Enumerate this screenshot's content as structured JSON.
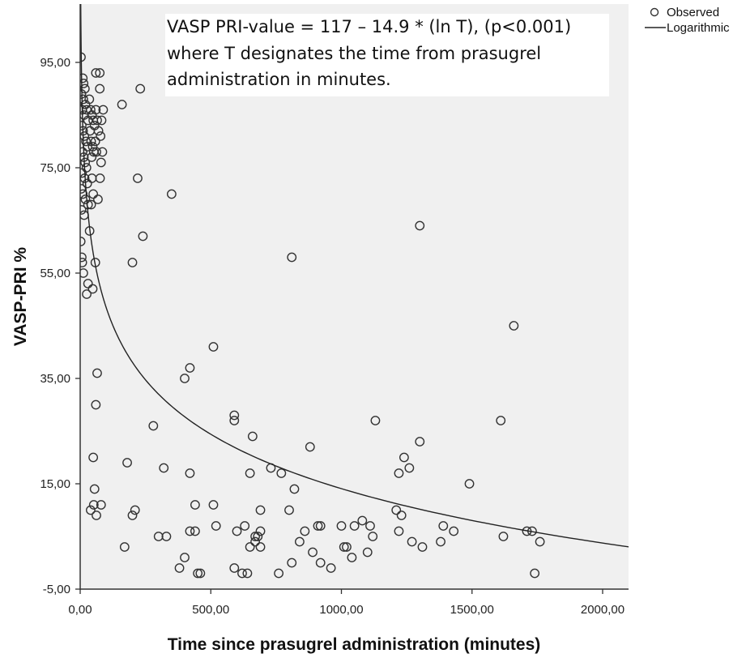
{
  "chart_data": {
    "type": "scatter",
    "title": "",
    "xlabel": "Time since prasugrel administration (minutes)",
    "ylabel": "VASP-PRI %",
    "xlim": [
      0,
      2100
    ],
    "ylim": [
      -5,
      110
    ],
    "x_ticks": [
      {
        "value": 0,
        "label": "0,00"
      },
      {
        "value": 500,
        "label": "500,00"
      },
      {
        "value": 1000,
        "label": "1000,00"
      },
      {
        "value": 1500,
        "label": "1500,00"
      },
      {
        "value": 2000,
        "label": "2000,00"
      }
    ],
    "y_ticks": [
      {
        "value": -5,
        "label": "-5,00"
      },
      {
        "value": 15,
        "label": "15,00"
      },
      {
        "value": 35,
        "label": "35,00"
      },
      {
        "value": 55,
        "label": "55,00"
      },
      {
        "value": 75,
        "label": "75,00"
      },
      {
        "value": 95,
        "label": "95,00"
      }
    ],
    "grid": false,
    "legend_position": "outside-top-right",
    "background_color": "#f0f0f0",
    "marker_color": "#333333",
    "annotation": {
      "lines": [
        "VASP PRI-value = 117 – 14.9 * (ln T), (p<0.001)",
        "where T designates the time from prasugrel",
        "administration in minutes."
      ]
    },
    "fit": {
      "type": "logarithmic",
      "a": 117,
      "b": -14.9,
      "x_range": [
        1,
        2100
      ]
    },
    "series": [
      {
        "name": "Observed",
        "type": "scatter",
        "points": [
          [
            3,
            96
          ],
          [
            10,
            92
          ],
          [
            13,
            91
          ],
          [
            18,
            90
          ],
          [
            5,
            89
          ],
          [
            12,
            88
          ],
          [
            20,
            87
          ],
          [
            8,
            86
          ],
          [
            15,
            85
          ],
          [
            25,
            86
          ],
          [
            30,
            84
          ],
          [
            6,
            83
          ],
          [
            11,
            82
          ],
          [
            16,
            81
          ],
          [
            22,
            80
          ],
          [
            28,
            79
          ],
          [
            9,
            78
          ],
          [
            14,
            77
          ],
          [
            19,
            76
          ],
          [
            24,
            75
          ],
          [
            7,
            74
          ],
          [
            17,
            73
          ],
          [
            27,
            72
          ],
          [
            4,
            71
          ],
          [
            10,
            70
          ],
          [
            20,
            69
          ],
          [
            30,
            68
          ],
          [
            5,
            67
          ],
          [
            15,
            66
          ],
          [
            2,
            61
          ],
          [
            6,
            58
          ],
          [
            35,
            88
          ],
          [
            40,
            86
          ],
          [
            45,
            85
          ],
          [
            50,
            84
          ],
          [
            38,
            82
          ],
          [
            42,
            80
          ],
          [
            55,
            83
          ],
          [
            60,
            86
          ],
          [
            65,
            84
          ],
          [
            70,
            82
          ],
          [
            58,
            80
          ],
          [
            48,
            79
          ],
          [
            52,
            78
          ],
          [
            44,
            77
          ],
          [
            62,
            78
          ],
          [
            45,
            73
          ],
          [
            50,
            70
          ],
          [
            42,
            68
          ],
          [
            68,
            69
          ],
          [
            8,
            57
          ],
          [
            12,
            55
          ],
          [
            25,
            51
          ],
          [
            30,
            53
          ],
          [
            36,
            63
          ],
          [
            48,
            52
          ],
          [
            58,
            57
          ],
          [
            60,
            93
          ],
          [
            75,
            93
          ],
          [
            78,
            81
          ],
          [
            85,
            78
          ],
          [
            88,
            86
          ],
          [
            82,
            84
          ],
          [
            80,
            76
          ],
          [
            76,
            73
          ],
          [
            65,
            36
          ],
          [
            60,
            30
          ],
          [
            50,
            20
          ],
          [
            55,
            14
          ],
          [
            62,
            9
          ],
          [
            80,
            11
          ],
          [
            40,
            10
          ],
          [
            52,
            11
          ],
          [
            75,
            90
          ],
          [
            160,
            87
          ],
          [
            230,
            90
          ],
          [
            220,
            73
          ],
          [
            350,
            70
          ],
          [
            240,
            62
          ],
          [
            200,
            57
          ],
          [
            400,
            35
          ],
          [
            420,
            37
          ],
          [
            510,
            41
          ],
          [
            280,
            26
          ],
          [
            180,
            19
          ],
          [
            320,
            18
          ],
          [
            420,
            17
          ],
          [
            210,
            10
          ],
          [
            200,
            9
          ],
          [
            170,
            3
          ],
          [
            300,
            5
          ],
          [
            330,
            5
          ],
          [
            380,
            -1
          ],
          [
            400,
            1
          ],
          [
            420,
            6
          ],
          [
            440,
            6
          ],
          [
            450,
            -2
          ],
          [
            460,
            -2
          ],
          [
            440,
            11
          ],
          [
            510,
            11
          ],
          [
            520,
            7
          ],
          [
            590,
            28
          ],
          [
            590,
            27
          ],
          [
            660,
            24
          ],
          [
            600,
            6
          ],
          [
            590,
            -1
          ],
          [
            620,
            -2
          ],
          [
            640,
            -2
          ],
          [
            630,
            7
          ],
          [
            650,
            3
          ],
          [
            670,
            5
          ],
          [
            670,
            4
          ],
          [
            680,
            5
          ],
          [
            690,
            10
          ],
          [
            690,
            6
          ],
          [
            690,
            3
          ],
          [
            650,
            17
          ],
          [
            730,
            18
          ],
          [
            760,
            -2
          ],
          [
            770,
            17
          ],
          [
            810,
            58
          ],
          [
            820,
            14
          ],
          [
            800,
            10
          ],
          [
            810,
            0
          ],
          [
            840,
            4
          ],
          [
            860,
            6
          ],
          [
            880,
            22
          ],
          [
            890,
            2
          ],
          [
            910,
            7
          ],
          [
            920,
            7
          ],
          [
            920,
            0
          ],
          [
            960,
            -1
          ],
          [
            1000,
            7
          ],
          [
            1010,
            3
          ],
          [
            1020,
            3
          ],
          [
            1040,
            1
          ],
          [
            1050,
            7
          ],
          [
            1080,
            8
          ],
          [
            1100,
            2
          ],
          [
            1110,
            7
          ],
          [
            1120,
            5
          ],
          [
            1130,
            27
          ],
          [
            1210,
            10
          ],
          [
            1220,
            6
          ],
          [
            1220,
            17
          ],
          [
            1230,
            9
          ],
          [
            1240,
            20
          ],
          [
            1260,
            18
          ],
          [
            1270,
            4
          ],
          [
            1300,
            64
          ],
          [
            1300,
            23
          ],
          [
            1310,
            3
          ],
          [
            1380,
            4
          ],
          [
            1390,
            7
          ],
          [
            1430,
            6
          ],
          [
            1490,
            15
          ],
          [
            1610,
            27
          ],
          [
            1620,
            5
          ],
          [
            1660,
            45
          ],
          [
            1710,
            6
          ],
          [
            1730,
            6
          ],
          [
            1740,
            -2
          ],
          [
            1760,
            4
          ]
        ]
      },
      {
        "name": "Logarithmic",
        "type": "line"
      }
    ]
  }
}
